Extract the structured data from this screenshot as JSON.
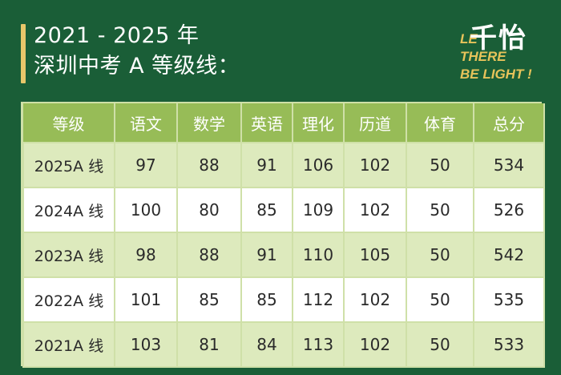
{
  "title": {
    "line1": "2021 - 2025 年",
    "line2": "深圳中考 A 等级线："
  },
  "logo": {
    "cn": "千怡",
    "en_line1": "LE",
    "en_line2": "THERE",
    "en_line3": "BE LIGHT !"
  },
  "table": {
    "headers": [
      "等级",
      "语文",
      "数学",
      "英语",
      "理化",
      "历道",
      "体育",
      "总分"
    ],
    "rows": [
      [
        "2025A  线",
        "97",
        "88",
        "91",
        "106",
        "102",
        "50",
        "534"
      ],
      [
        "2024A  线",
        "100",
        "80",
        "85",
        "109",
        "102",
        "50",
        "526"
      ],
      [
        "2023A  线",
        "98",
        "88",
        "91",
        "110",
        "105",
        "50",
        "542"
      ],
      [
        "2022A  线",
        "101",
        "85",
        "85",
        "112",
        "102",
        "50",
        "535"
      ],
      [
        "2021A  线",
        "103",
        "81",
        "84",
        "113",
        "102",
        "50",
        "533"
      ]
    ]
  },
  "colors": {
    "background": "#1a5e37",
    "header": "#97bc57",
    "row_alt": "#ddeabd",
    "accent": "#e8c76a"
  }
}
